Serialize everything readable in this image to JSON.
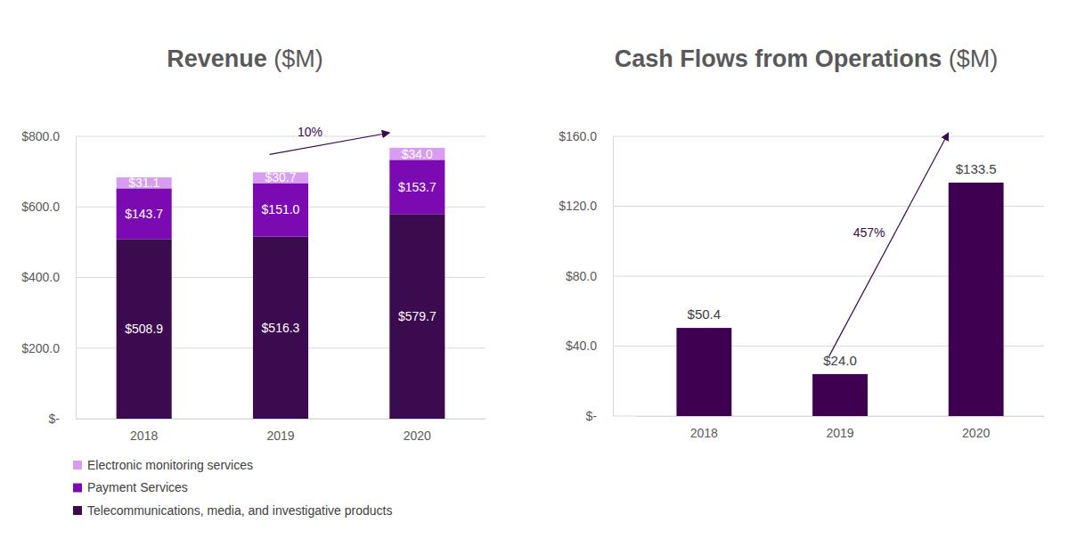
{
  "chart_data": [
    {
      "type": "bar",
      "title": "Revenue ($M)",
      "categories": [
        "2018",
        "2019",
        "2020"
      ],
      "stacked": true,
      "data_labels": true,
      "grid": true,
      "legend": "bottom-left",
      "series": [
        {
          "name": "Electronic monitoring services",
          "color": "#d89cf0",
          "values": [
            31.1,
            30.7,
            34.0
          ],
          "value_labels": [
            "$31.1",
            "$30.7",
            "$34.0"
          ]
        },
        {
          "name": "Payment Services",
          "color": "#7c0ab3",
          "values": [
            143.7,
            151.0,
            153.7
          ],
          "value_labels": [
            "$143.7",
            "$151.0",
            "$153.7"
          ]
        },
        {
          "name": "Telecommunications, media, and investigative products",
          "color": "#3c0a4e",
          "values": [
            508.9,
            516.3,
            579.7
          ],
          "value_labels": [
            "$508.9",
            "$516.3",
            "$579.7"
          ]
        }
      ],
      "ylim": [
        0,
        800
      ],
      "yticks": [
        {
          "value": 0,
          "label": "$-"
        },
        {
          "value": 200,
          "label": "$200.0"
        },
        {
          "value": 400,
          "label": "$400.0"
        },
        {
          "value": 600,
          "label": "$600.0"
        },
        {
          "value": 800,
          "label": "$800.0"
        }
      ],
      "annotations": [
        {
          "text": "10%",
          "from": "2019",
          "to": "2020"
        }
      ]
    },
    {
      "type": "bar",
      "title": "Cash Flows from Operations ($M)",
      "categories": [
        "2018",
        "2019",
        "2020"
      ],
      "values": [
        50.4,
        24.0,
        133.5
      ],
      "value_labels": [
        "$50.4",
        "$24.0",
        "$133.5"
      ],
      "color": "#400052",
      "data_labels": true,
      "grid": true,
      "ylim": [
        0,
        160
      ],
      "yticks": [
        {
          "value": 0,
          "label": "$-"
        },
        {
          "value": 40,
          "label": "$40.0"
        },
        {
          "value": 80,
          "label": "$80.0"
        },
        {
          "value": 120,
          "label": "$120.0"
        },
        {
          "value": 160,
          "label": "$160.0"
        }
      ],
      "annotations": [
        {
          "text": "457%",
          "from": "2019",
          "to": "2020"
        }
      ]
    }
  ]
}
